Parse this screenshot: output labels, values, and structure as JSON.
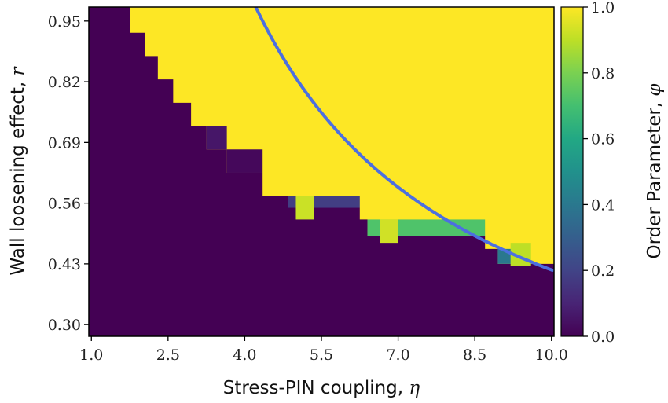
{
  "chart_data": {
    "type": "heatmap",
    "xlabel": "Stress-PIN coupling, ",
    "xlabel_symbol": "η",
    "ylabel": "Wall loosening effect, ",
    "ylabel_symbol": "r",
    "xlim": [
      0.95,
      10.05
    ],
    "ylim": [
      0.275,
      0.98
    ],
    "xticks": [
      1.0,
      2.5,
      4.0,
      5.5,
      7.0,
      8.5,
      10.0
    ],
    "xtick_labels": [
      "1.0",
      "2.5",
      "4.0",
      "5.5",
      "7.0",
      "8.5",
      "10.0"
    ],
    "yticks": [
      0.3,
      0.43,
      0.56,
      0.69,
      0.82,
      0.95
    ],
    "ytick_labels": [
      "0.30",
      "0.43",
      "0.56",
      "0.69",
      "0.82",
      "0.95"
    ],
    "colorbar": {
      "label": "Order Parameter, ",
      "label_symbol": "φ",
      "range": [
        0.0,
        1.0
      ],
      "ticks": [
        0.0,
        0.2,
        0.4,
        0.6,
        0.8,
        1.0
      ],
      "tick_labels": [
        "0.0",
        "0.2",
        "0.4",
        "0.6",
        "0.8",
        "1.0"
      ],
      "colormap": "viridis"
    },
    "boundary_steps": [
      {
        "x": 1.75,
        "y": 0.925,
        "phi": 1.0
      },
      {
        "x": 2.05,
        "y": 0.875,
        "phi": 0.0
      },
      {
        "x": 2.3,
        "y": 0.825,
        "phi": 0.0
      },
      {
        "x": 2.6,
        "y": 0.775,
        "phi": 0.0
      },
      {
        "x": 2.95,
        "y": 0.725,
        "phi": 0.0
      },
      {
        "x": 3.25,
        "y": 0.675,
        "phi": 0.06
      },
      {
        "x": 3.65,
        "y": 0.625,
        "phi": 0.02
      },
      {
        "x": 4.35,
        "y": 0.575,
        "phi": 0.0
      },
      {
        "x": 4.85,
        "y": 0.55,
        "phi": 0.18
      },
      {
        "x": 6.25,
        "y": 0.525,
        "phi": 0.0
      },
      {
        "x": 6.4,
        "y": 0.49,
        "phi": 0.72
      },
      {
        "x": 8.7,
        "y": 0.462,
        "phi": 0.0
      },
      {
        "x": 8.95,
        "y": 0.43,
        "phi": 0.4
      }
    ],
    "soft_cells": [
      {
        "x0": 5.0,
        "x1": 5.35,
        "y0": 0.525,
        "y1": 0.575,
        "phi": 0.92
      },
      {
        "x0": 6.65,
        "x1": 7.0,
        "y0": 0.475,
        "y1": 0.525,
        "phi": 0.93
      },
      {
        "x0": 9.2,
        "x1": 9.6,
        "y0": 0.425,
        "y1": 0.475,
        "phi": 0.9
      }
    ],
    "boundary_curve": {
      "formula": "r = 4.2 / (eta + 0.07)",
      "eta_range": [
        1.72,
        10.02
      ],
      "color": "#4c6fe0"
    }
  }
}
